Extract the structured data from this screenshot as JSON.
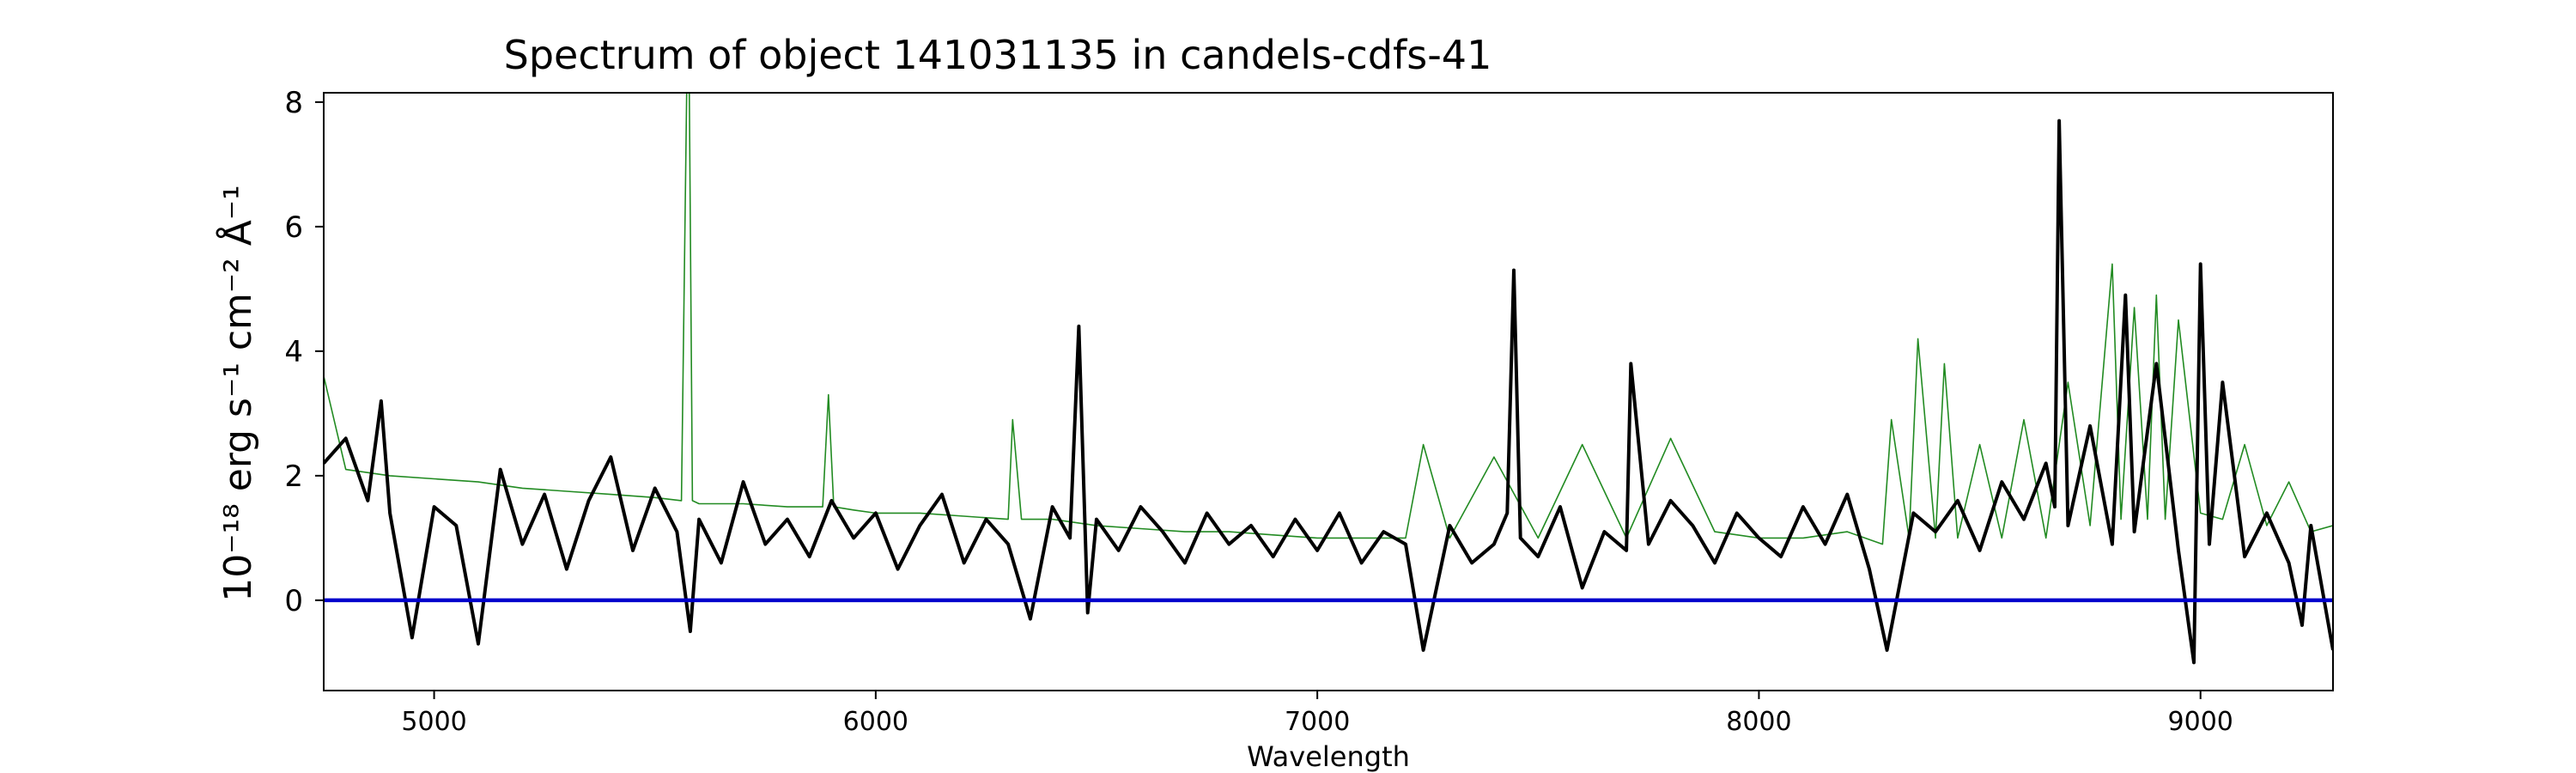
{
  "chart_data": {
    "type": "line",
    "title": "Spectrum of object 141031135 in candels-cdfs-41",
    "xlabel": "Wavelength",
    "ylabel": "10⁻¹⁸ erg s⁻¹ cm⁻² Å⁻¹",
    "xlim": [
      4750,
      9300
    ],
    "ylim": [
      -1.45,
      8.15
    ],
    "xticks": [
      5000,
      6000,
      7000,
      8000,
      9000
    ],
    "xtick_labels": [
      "5000",
      "6000",
      "7000",
      "8000",
      "9000"
    ],
    "yticks": [
      0,
      2,
      4,
      6,
      8
    ],
    "ytick_labels": [
      "0",
      "2",
      "4",
      "6",
      "8"
    ],
    "grid": false,
    "series": [
      {
        "color": "#000000",
        "x": [
          4750,
          4800,
          4850,
          4880,
          4900,
          4950,
          5000,
          5050,
          5100,
          5150,
          5200,
          5250,
          5300,
          5350,
          5400,
          5450,
          5500,
          5550,
          5580,
          5600,
          5650,
          5700,
          5750,
          5800,
          5850,
          5900,
          5950,
          6000,
          6050,
          6100,
          6150,
          6200,
          6250,
          6300,
          6350,
          6400,
          6440,
          6460,
          6480,
          6500,
          6550,
          6600,
          6650,
          6700,
          6750,
          6800,
          6850,
          6900,
          6950,
          7000,
          7050,
          7100,
          7150,
          7200,
          7240,
          7300,
          7350,
          7400,
          7430,
          7445,
          7460,
          7500,
          7550,
          7600,
          7650,
          7700,
          7710,
          7750,
          7800,
          7850,
          7900,
          7950,
          8000,
          8050,
          8100,
          8150,
          8200,
          8250,
          8290,
          8350,
          8400,
          8450,
          8500,
          8550,
          8600,
          8650,
          8670,
          8680,
          8700,
          8750,
          8800,
          8830,
          8850,
          8900,
          8950,
          8985,
          9000,
          9020,
          9050,
          9100,
          9150,
          9200,
          9230,
          9250,
          9300
        ],
        "values": [
          2.2,
          2.6,
          1.6,
          3.2,
          1.4,
          -0.6,
          1.5,
          1.2,
          -0.7,
          2.1,
          0.9,
          1.7,
          0.5,
          1.6,
          2.3,
          0.8,
          1.8,
          1.1,
          -0.5,
          1.3,
          0.6,
          1.9,
          0.9,
          1.3,
          0.7,
          1.6,
          1.0,
          1.4,
          0.5,
          1.2,
          1.7,
          0.6,
          1.3,
          0.9,
          -0.3,
          1.5,
          1.0,
          4.4,
          -0.2,
          1.3,
          0.8,
          1.5,
          1.1,
          0.6,
          1.4,
          0.9,
          1.2,
          0.7,
          1.3,
          0.8,
          1.4,
          0.6,
          1.1,
          0.9,
          -0.8,
          1.2,
          0.6,
          0.9,
          1.4,
          5.3,
          1.0,
          0.7,
          1.5,
          0.2,
          1.1,
          0.8,
          3.8,
          0.9,
          1.6,
          1.2,
          0.6,
          1.4,
          1.0,
          0.7,
          1.5,
          0.9,
          1.7,
          0.5,
          -0.8,
          1.4,
          1.1,
          1.6,
          0.8,
          1.9,
          1.3,
          2.2,
          1.5,
          7.7,
          1.2,
          2.8,
          0.9,
          4.9,
          1.1,
          3.8,
          0.8,
          -1.0,
          5.4,
          0.9,
          3.5,
          0.7,
          1.4,
          0.6,
          -0.4,
          1.2,
          -0.8
        ]
      },
      {
        "color": "#228B22",
        "x": [
          4750,
          4800,
          4900,
          5000,
          5100,
          5200,
          5300,
          5400,
          5500,
          5560,
          5572,
          5578,
          5585,
          5600,
          5700,
          5800,
          5880,
          5893,
          5905,
          5950,
          6000,
          6100,
          6200,
          6300,
          6310,
          6330,
          6400,
          6500,
          6600,
          6700,
          6800,
          6900,
          7000,
          7100,
          7200,
          7240,
          7300,
          7400,
          7500,
          7600,
          7700,
          7800,
          7900,
          8000,
          8100,
          8200,
          8280,
          8300,
          8340,
          8360,
          8400,
          8420,
          8450,
          8500,
          8550,
          8600,
          8650,
          8700,
          8750,
          8800,
          8820,
          8850,
          8880,
          8900,
          8920,
          8950,
          9000,
          9050,
          9100,
          9150,
          9200,
          9250,
          9300
        ],
        "values": [
          3.6,
          2.1,
          2.0,
          1.95,
          1.9,
          1.8,
          1.75,
          1.7,
          1.65,
          1.6,
          8.15,
          8.15,
          1.6,
          1.55,
          1.55,
          1.5,
          1.5,
          3.3,
          1.5,
          1.45,
          1.4,
          1.4,
          1.35,
          1.3,
          2.9,
          1.3,
          1.3,
          1.2,
          1.15,
          1.1,
          1.1,
          1.05,
          1.0,
          1.0,
          1.0,
          2.5,
          1.0,
          2.3,
          1.0,
          2.5,
          1.0,
          2.6,
          1.1,
          1.0,
          1.0,
          1.1,
          0.9,
          2.9,
          1.0,
          4.2,
          1.0,
          3.8,
          1.0,
          2.5,
          1.0,
          2.9,
          1.0,
          3.5,
          1.2,
          5.4,
          1.3,
          4.7,
          1.3,
          4.9,
          1.3,
          4.5,
          1.4,
          1.3,
          2.5,
          1.2,
          1.9,
          1.1,
          1.2
        ]
      },
      {
        "color": "#0000CC",
        "x": [
          4750,
          9300
        ],
        "values": [
          0,
          0
        ]
      }
    ]
  }
}
